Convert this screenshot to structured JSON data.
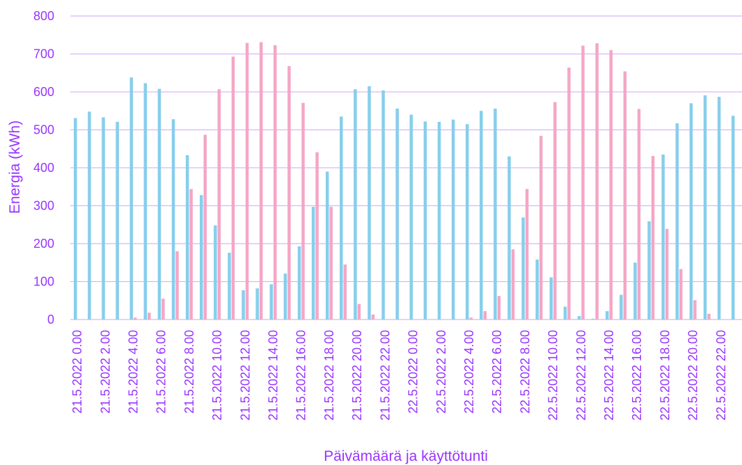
{
  "colors": {
    "text": "#9933ff",
    "grid": "#d9b3ff",
    "series_a": "#87ceeb",
    "series_b": "#f4a6c6"
  },
  "chart_data": {
    "type": "bar",
    "xlabel": "Päivämäärä ja käyttötunti",
    "ylabel": "Energia (kWh)",
    "ylim": [
      0,
      800
    ],
    "yticks": [
      0,
      100,
      200,
      300,
      400,
      500,
      600,
      700,
      800
    ],
    "grid": true,
    "legend": "none",
    "tick_labels": [
      "21.5.2022 0.00",
      "21.5.2022 2.00",
      "21.5.2022 4.00",
      "21.5.2022 6.00",
      "21.5.2022 8.00",
      "21.5.2022 10.00",
      "21.5.2022 12.00",
      "21.5.2022 14.00",
      "21.5.2022 16.00",
      "21.5.2022 18.00",
      "21.5.2022 20.00",
      "21.5.2022 22.00",
      "22.5.2022 0.00",
      "22.5.2022 2.00",
      "22.5.2022 4.00",
      "22.5.2022 6.00",
      "22.5.2022 8.00",
      "22.5.2022 10.00",
      "22.5.2022 12.00",
      "22.5.2022 14.00",
      "22.5.2022 16.00",
      "22.5.2022 18.00",
      "22.5.2022 20.00",
      "22.5.2022 22.00"
    ],
    "categories": [
      "21.5.2022 0.00",
      "21.5.2022 1.00",
      "21.5.2022 2.00",
      "21.5.2022 3.00",
      "21.5.2022 4.00",
      "21.5.2022 5.00",
      "21.5.2022 6.00",
      "21.5.2022 7.00",
      "21.5.2022 8.00",
      "21.5.2022 9.00",
      "21.5.2022 10.00",
      "21.5.2022 11.00",
      "21.5.2022 12.00",
      "21.5.2022 13.00",
      "21.5.2022 14.00",
      "21.5.2022 15.00",
      "21.5.2022 16.00",
      "21.5.2022 17.00",
      "21.5.2022 18.00",
      "21.5.2022 19.00",
      "21.5.2022 20.00",
      "21.5.2022 21.00",
      "21.5.2022 22.00",
      "21.5.2022 23.00",
      "22.5.2022 0.00",
      "22.5.2022 1.00",
      "22.5.2022 2.00",
      "22.5.2022 3.00",
      "22.5.2022 4.00",
      "22.5.2022 5.00",
      "22.5.2022 6.00",
      "22.5.2022 7.00",
      "22.5.2022 8.00",
      "22.5.2022 9.00",
      "22.5.2022 10.00",
      "22.5.2022 11.00",
      "22.5.2022 12.00",
      "22.5.2022 13.00",
      "22.5.2022 14.00",
      "22.5.2022 15.00",
      "22.5.2022 16.00",
      "22.5.2022 17.00",
      "22.5.2022 18.00",
      "22.5.2022 19.00",
      "22.5.2022 20.00",
      "22.5.2022 21.00",
      "22.5.2022 22.00",
      "22.5.2022 23.00"
    ],
    "series": [
      {
        "color": "#87ceeb",
        "values": [
          531,
          548,
          533,
          521,
          638,
          623,
          608,
          528,
          433,
          328,
          248,
          176,
          77,
          82,
          93,
          121,
          193,
          297,
          390,
          535,
          607,
          615,
          604,
          556,
          540,
          522,
          521,
          527,
          515,
          550,
          556,
          430,
          269,
          158,
          111,
          34,
          9,
          2,
          22,
          65,
          150,
          259,
          435,
          517,
          570,
          591,
          587,
          537
        ]
      },
      {
        "color": "#f4a6c6",
        "values": [
          0,
          0,
          0,
          0,
          5,
          18,
          55,
          180,
          344,
          487,
          607,
          693,
          729,
          731,
          723,
          668,
          571,
          441,
          297,
          145,
          41,
          13,
          0,
          0,
          0,
          0,
          0,
          0,
          5,
          22,
          62,
          185,
          344,
          484,
          573,
          664,
          722,
          728,
          710,
          654,
          555,
          431,
          239,
          133,
          51,
          15,
          0,
          0
        ]
      }
    ]
  }
}
